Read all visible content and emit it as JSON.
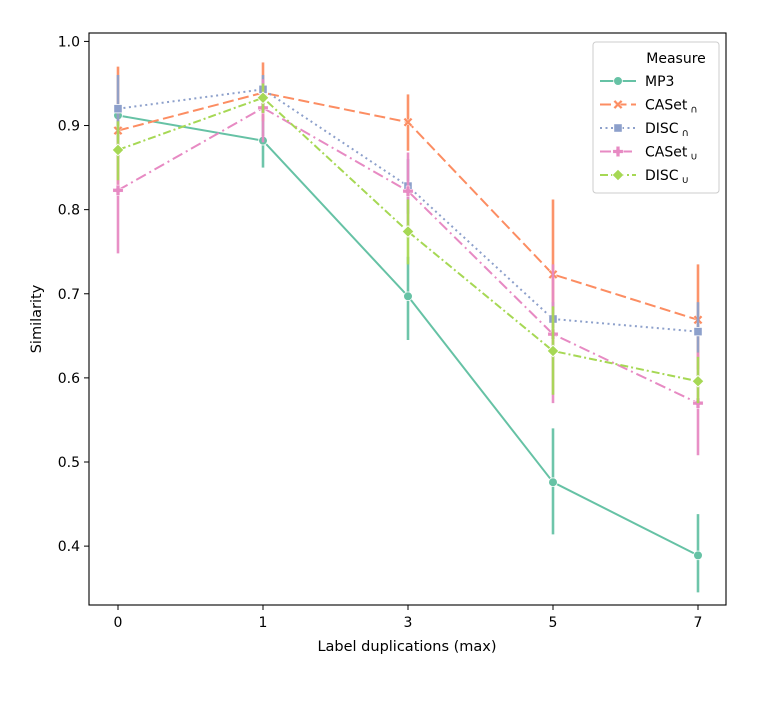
{
  "chart_data": {
    "type": "line",
    "title": "",
    "xlabel": "Label duplications (max)",
    "ylabel": "Similarity",
    "categories": [
      "0",
      "1",
      "3",
      "5",
      "7"
    ],
    "ylim": [
      0.33,
      1.01
    ],
    "yticks": [
      "0.4",
      "0.5",
      "0.6",
      "0.7",
      "0.8",
      "0.9",
      "1.0"
    ],
    "grid": false,
    "legend": {
      "title": "Measure",
      "position": "top-right"
    },
    "series": [
      {
        "name": "MP3",
        "sub": "",
        "color": "#66c2a5",
        "dash": "",
        "marker": "circle",
        "values": [
          0.912,
          0.882,
          0.697,
          0.476,
          0.389
        ],
        "ci": [
          [
            0.9,
            0.922
          ],
          [
            0.85,
            0.912
          ],
          [
            0.645,
            0.744
          ],
          [
            0.414,
            0.54
          ],
          [
            0.345,
            0.438
          ]
        ]
      },
      {
        "name": "CASet",
        "sub": "∩",
        "color": "#fc8d62",
        "dash": "11,4.5",
        "marker": "x",
        "values": [
          0.894,
          0.939,
          0.904,
          0.723,
          0.669
        ],
        "ci": [
          [
            0.82,
            0.97
          ],
          [
            0.905,
            0.975
          ],
          [
            0.87,
            0.937
          ],
          [
            0.64,
            0.812
          ],
          [
            0.61,
            0.735
          ]
        ]
      },
      {
        "name": "DISC",
        "sub": "∩",
        "color": "#8da0cb",
        "dash": "2,3.5",
        "marker": "square",
        "values": [
          0.92,
          0.943,
          0.828,
          0.67,
          0.655
        ],
        "ci": [
          [
            0.88,
            0.96
          ],
          [
            0.925,
            0.96
          ],
          [
            0.795,
            0.86
          ],
          [
            0.65,
            0.69
          ],
          [
            0.63,
            0.69
          ]
        ]
      },
      {
        "name": "CASet",
        "sub": "∪",
        "color": "#e78ac3",
        "dash": "11,4,2,4",
        "marker": "plus",
        "values": [
          0.823,
          0.921,
          0.822,
          0.652,
          0.57
        ],
        "ci": [
          [
            0.748,
            0.9
          ],
          [
            0.88,
            0.955
          ],
          [
            0.775,
            0.868
          ],
          [
            0.57,
            0.735
          ],
          [
            0.508,
            0.63
          ]
        ]
      },
      {
        "name": "DISC",
        "sub": "∪",
        "color": "#a6d854",
        "dash": "8,3,2,3",
        "marker": "diamond",
        "values": [
          0.871,
          0.933,
          0.774,
          0.632,
          0.596
        ],
        "ci": [
          [
            0.835,
            0.905
          ],
          [
            0.915,
            0.95
          ],
          [
            0.735,
            0.812
          ],
          [
            0.58,
            0.685
          ],
          [
            0.57,
            0.625
          ]
        ]
      }
    ]
  }
}
